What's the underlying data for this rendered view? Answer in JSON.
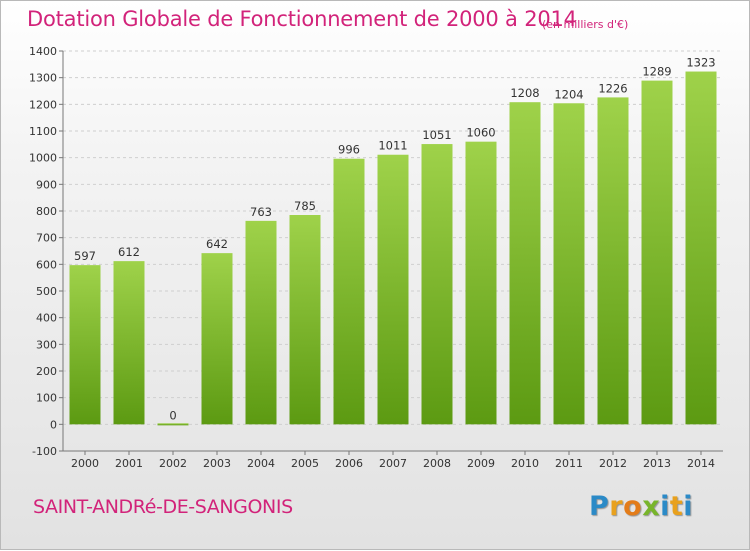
{
  "header": {
    "title": "Dotation Globale de Fonctionnement de 2000 à 2014",
    "subtitle": "(en milliers d'€)"
  },
  "footer": {
    "commune": "SAINT-ANDRé-DE-SANGONIS",
    "logo_letters": [
      "P",
      "r",
      "o",
      "x",
      "i",
      "t",
      "i"
    ],
    "logo_colors": [
      "#2b8ac7",
      "#e8a11e",
      "#e37c1a",
      "#78b52b",
      "#2b8ac7",
      "#e8a11e",
      "#2b8ac7"
    ]
  },
  "colors": {
    "bar_top": "#9fd24a",
    "bar_bottom": "#5c9a12",
    "title": "#d2237a",
    "grid": "#cfcfcf"
  },
  "chart_data": {
    "type": "bar",
    "title": "Dotation Globale de Fonctionnement de 2000 à 2014",
    "subtitle": "(en milliers d'€)",
    "categories": [
      "2000",
      "2001",
      "2002",
      "2003",
      "2004",
      "2005",
      "2006",
      "2007",
      "2008",
      "2009",
      "2010",
      "2011",
      "2012",
      "2013",
      "2014"
    ],
    "values": [
      597,
      612,
      0,
      642,
      763,
      785,
      996,
      1011,
      1051,
      1060,
      1208,
      1204,
      1226,
      1289,
      1323
    ],
    "ylim": [
      -100,
      1400
    ],
    "yticks": [
      -100,
      0,
      100,
      200,
      300,
      400,
      500,
      600,
      700,
      800,
      900,
      1000,
      1100,
      1200,
      1300,
      1400
    ],
    "xlabel": "",
    "ylabel": "",
    "grid": true,
    "legend": "none"
  }
}
